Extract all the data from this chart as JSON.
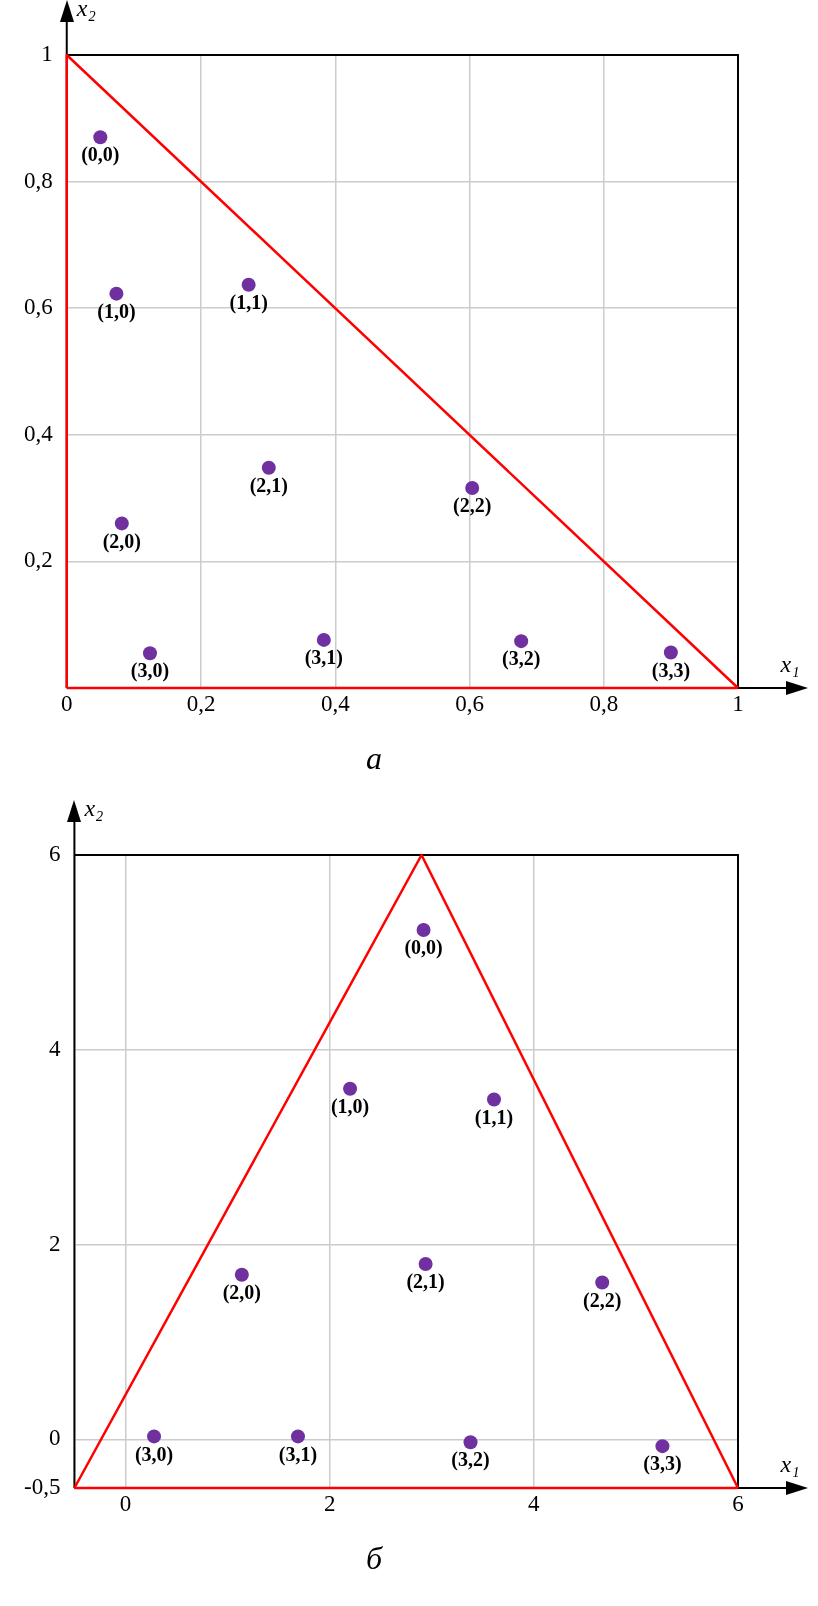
{
  "chart_data": [
    {
      "type": "scatter",
      "title": "а",
      "xlabel": "x₁",
      "ylabel": "x₂",
      "xlim": [
        0,
        1
      ],
      "ylim": [
        0,
        1
      ],
      "grid": true,
      "legend": false,
      "xticks": [
        {
          "value": 0,
          "label": "0"
        },
        {
          "value": 0.2,
          "label": "0,2"
        },
        {
          "value": 0.4,
          "label": "0,4"
        },
        {
          "value": 0.6,
          "label": "0,6"
        },
        {
          "value": 0.8,
          "label": "0,8"
        },
        {
          "value": 1,
          "label": "1"
        }
      ],
      "yticks": [
        {
          "value": 0,
          "label": null
        },
        {
          "value": 0.2,
          "label": "0,2"
        },
        {
          "value": 0.4,
          "label": "0,4"
        },
        {
          "value": 0.6,
          "label": "0,6"
        },
        {
          "value": 0.8,
          "label": "0,8"
        },
        {
          "value": 1,
          "label": "1"
        }
      ],
      "series": [
        {
          "type": "line",
          "color": "#ff0000",
          "marker": "none",
          "x": [
            0,
            0,
            1
          ],
          "values": [
            0,
            1,
            0
          ]
        },
        {
          "type": "line",
          "color": "#ff0000",
          "marker": "none",
          "x": [
            0,
            1
          ],
          "values": [
            0,
            0
          ]
        },
        {
          "type": "scatter",
          "color": "#7030a0",
          "marker": "circle",
          "x": [
            0.05,
            0.074,
            0.271,
            0.082,
            0.301,
            0.604,
            0.124,
            0.383,
            0.677,
            0.9
          ],
          "values": [
            0.87,
            0.623,
            0.637,
            0.26,
            0.348,
            0.316,
            0.055,
            0.076,
            0.074,
            0.056
          ]
        }
      ],
      "annotations": [
        {
          "text": "(0,0)",
          "x": 0.05,
          "y": 0.87
        },
        {
          "text": "(1,0)",
          "x": 0.074,
          "y": 0.623
        },
        {
          "text": "(1,1)",
          "x": 0.271,
          "y": 0.637
        },
        {
          "text": "(2,0)",
          "x": 0.082,
          "y": 0.26
        },
        {
          "text": "(2,1)",
          "x": 0.301,
          "y": 0.348
        },
        {
          "text": "(2,2)",
          "x": 0.604,
          "y": 0.316
        },
        {
          "text": "(3,0)",
          "x": 0.124,
          "y": 0.055
        },
        {
          "text": "(3,1)",
          "x": 0.383,
          "y": 0.076
        },
        {
          "text": "(3,2)",
          "x": 0.677,
          "y": 0.074
        },
        {
          "text": "(3,3)",
          "x": 0.9,
          "y": 0.056
        }
      ]
    },
    {
      "type": "scatter",
      "title": "б",
      "xlabel": "x₁",
      "ylabel": "x₂",
      "xlim": [
        -0.5,
        6
      ],
      "ylim": [
        -0.5,
        6
      ],
      "grid": true,
      "legend": false,
      "xticks": [
        {
          "value": -0.5,
          "label": null
        },
        {
          "value": 0,
          "label": "0"
        },
        {
          "value": 2,
          "label": "2"
        },
        {
          "value": 4,
          "label": "4"
        },
        {
          "value": 6,
          "label": "6"
        }
      ],
      "yticks": [
        {
          "value": -0.5,
          "label": "-0,5"
        },
        {
          "value": 0,
          "label": "0"
        },
        {
          "value": 2,
          "label": "2"
        },
        {
          "value": 4,
          "label": "4"
        },
        {
          "value": 6,
          "label": "6"
        }
      ],
      "series": [
        {
          "type": "line",
          "color": "#ff0000",
          "marker": "none",
          "x": [
            -0.5,
            2.9,
            6
          ],
          "values": [
            -0.5,
            6,
            -0.5
          ]
        },
        {
          "type": "line",
          "color": "#ff0000",
          "marker": "none",
          "x": [
            -0.5,
            6
          ],
          "values": [
            -0.5,
            -0.5
          ]
        },
        {
          "type": "scatter",
          "color": "#7030a0",
          "marker": "circle",
          "x": [
            2.92,
            2.2,
            3.61,
            1.14,
            2.94,
            4.67,
            0.28,
            1.69,
            3.38,
            5.26
          ],
          "values": [
            5.23,
            3.6,
            3.49,
            1.69,
            1.8,
            1.61,
            0.03,
            0.03,
            -0.03,
            -0.07
          ]
        }
      ],
      "annotations": [
        {
          "text": "(0,0)",
          "x": 2.92,
          "y": 5.23
        },
        {
          "text": "(1,0)",
          "x": 2.2,
          "y": 3.6
        },
        {
          "text": "(1,1)",
          "x": 3.61,
          "y": 3.49
        },
        {
          "text": "(2,0)",
          "x": 1.14,
          "y": 1.69
        },
        {
          "text": "(2,1)",
          "x": 2.94,
          "y": 1.8
        },
        {
          "text": "(2,2)",
          "x": 4.67,
          "y": 1.61
        },
        {
          "text": "(3,0)",
          "x": 0.28,
          "y": 0.03
        },
        {
          "text": "(3,1)",
          "x": 1.69,
          "y": 0.03
        },
        {
          "text": "(3,2)",
          "x": 3.38,
          "y": -0.03
        },
        {
          "text": "(3,3)",
          "x": 5.26,
          "y": -0.07
        }
      ]
    }
  ]
}
